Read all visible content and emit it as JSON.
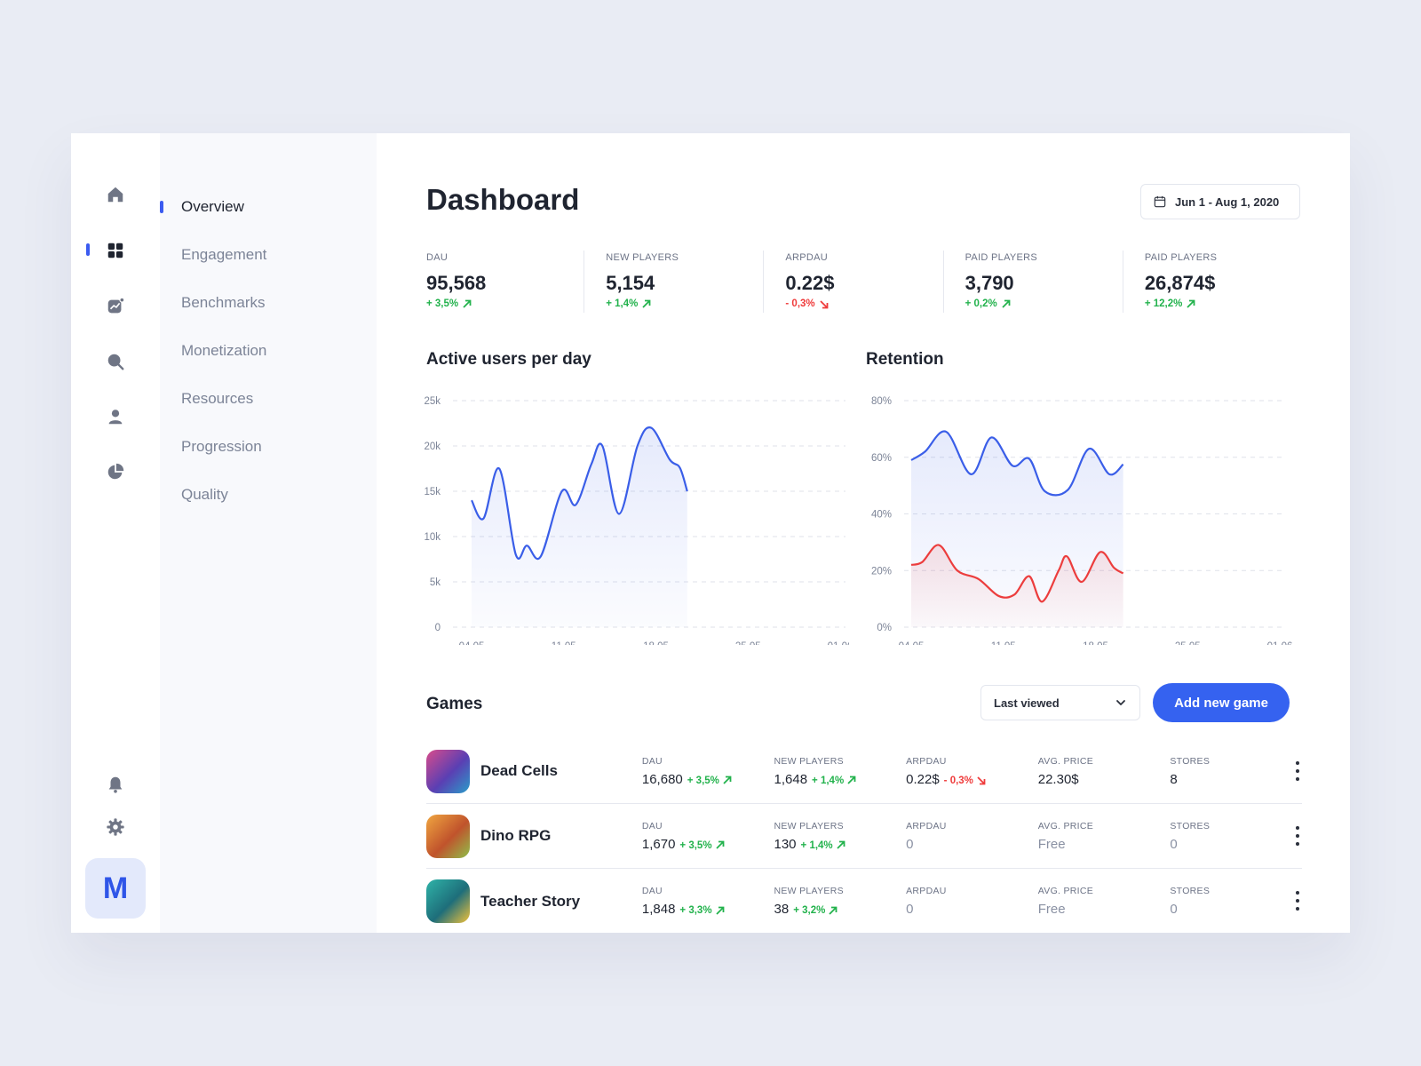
{
  "rail": {
    "icons": [
      "home-icon",
      "grid-icon",
      "analytics-icon",
      "search-icon",
      "user-icon",
      "pie-chart-icon",
      "bell-icon",
      "gear-icon"
    ],
    "avatar_letter": "M"
  },
  "subnav": {
    "items": [
      {
        "label": "Overview",
        "active": true
      },
      {
        "label": "Engagement"
      },
      {
        "label": "Benchmarks"
      },
      {
        "label": "Monetization"
      },
      {
        "label": "Resources"
      },
      {
        "label": "Progression"
      },
      {
        "label": "Quality"
      }
    ]
  },
  "header": {
    "title": "Dashboard",
    "date_range": "Jun 1 - Aug 1, 2020"
  },
  "kpis": [
    {
      "label": "DAU",
      "value": "95,568",
      "change": "+ 3,5%",
      "direction": "up"
    },
    {
      "label": "NEW PLAYERS",
      "value": "5,154",
      "change": "+ 1,4%",
      "direction": "up"
    },
    {
      "label": "ARPDAU",
      "value": "0.22$",
      "change": "- 0,3%",
      "direction": "down"
    },
    {
      "label": "PAID PLAYERS",
      "value": "3,790",
      "change": "+ 0,2%",
      "direction": "up"
    },
    {
      "label": "PAID PLAYERS",
      "value": "26,874$",
      "change": "+ 12,2%",
      "direction": "up"
    }
  ],
  "colors": {
    "accent": "#3b5bf0",
    "up": "#22b24c",
    "down": "#ef3b3b",
    "series_blue": "#3a5ee8",
    "series_red": "#ec3d3d"
  },
  "chart_data": [
    {
      "type": "area",
      "title": "Active users per day",
      "x": [
        "04.05",
        "11.05",
        "18.05",
        "25.05",
        "01.06"
      ],
      "yticks": [
        "0",
        "5k",
        "10k",
        "15k",
        "20k",
        "25k"
      ],
      "ylim": [
        0,
        25000
      ],
      "grid": true,
      "series": [
        {
          "values": [
            [
              0,
              14000
            ],
            [
              0.13,
              12000
            ],
            [
              0.3,
              17500
            ],
            [
              0.48,
              8000
            ],
            [
              0.6,
              9000
            ],
            [
              0.75,
              7800
            ],
            [
              0.98,
              15000
            ],
            [
              1.13,
              13500
            ],
            [
              1.3,
              18000
            ],
            [
              1.42,
              20000
            ],
            [
              1.6,
              12500
            ],
            [
              1.8,
              20000
            ],
            [
              1.95,
              22000
            ],
            [
              2.15,
              18500
            ],
            [
              2.26,
              17600
            ],
            [
              2.34,
              15000
            ]
          ]
        }
      ]
    },
    {
      "type": "area",
      "title": "Retention",
      "x": [
        "04.05",
        "11.05",
        "18.05",
        "25.05",
        "01.06"
      ],
      "yticks": [
        "0%",
        "20%",
        "40%",
        "60%",
        "80%"
      ],
      "ylim": [
        0,
        80
      ],
      "grid": true,
      "series": [
        {
          "values": [
            [
              0,
              59
            ],
            [
              0.15,
              62
            ],
            [
              0.38,
              69
            ],
            [
              0.65,
              54
            ],
            [
              0.87,
              67
            ],
            [
              1.1,
              57
            ],
            [
              1.28,
              59.5
            ],
            [
              1.45,
              48
            ],
            [
              1.7,
              48.5
            ],
            [
              1.93,
              63
            ],
            [
              2.15,
              54
            ],
            [
              2.3,
              57.5
            ]
          ]
        },
        {
          "values": [
            [
              0,
              22
            ],
            [
              0.12,
              23
            ],
            [
              0.3,
              29
            ],
            [
              0.5,
              20
            ],
            [
              0.73,
              17
            ],
            [
              0.95,
              11
            ],
            [
              1.12,
              11.5
            ],
            [
              1.28,
              18
            ],
            [
              1.42,
              9
            ],
            [
              1.6,
              20
            ],
            [
              1.69,
              25
            ],
            [
              1.85,
              16
            ],
            [
              2.05,
              26.5
            ],
            [
              2.2,
              21
            ],
            [
              2.3,
              19
            ]
          ]
        }
      ]
    }
  ],
  "games": {
    "title": "Games",
    "sort_label": "Last viewed",
    "add_label": "Add new game",
    "rows": [
      {
        "name": "Dead Cells",
        "thumb_colors": [
          "#d94c8b",
          "#5a3fb3",
          "#2a9dc9"
        ],
        "dau": "16,680",
        "dau_change": "+ 3,5%",
        "dau_dir": "up",
        "new_players": "1,648",
        "new_change": "+ 1,4%",
        "new_dir": "up",
        "arpdau": "0.22$",
        "arpdau_change": "- 0,3%",
        "arpdau_dir": "down",
        "avg_price": "22.30$",
        "stores": "8",
        "muted": false
      },
      {
        "name": "Dino RPG",
        "thumb_colors": [
          "#f0a640",
          "#c0532c",
          "#8fbf4a"
        ],
        "dau": "1,670",
        "dau_change": "+ 3,5%",
        "dau_dir": "up",
        "new_players": "130",
        "new_change": "+ 1,4%",
        "new_dir": "up",
        "arpdau": "0",
        "arpdau_change": "",
        "arpdau_dir": "",
        "avg_price": "Free",
        "stores": "0",
        "muted": true
      },
      {
        "name": "Teacher Story",
        "thumb_colors": [
          "#2fb3a8",
          "#1e6e7a",
          "#f2c23a"
        ],
        "dau": "1,848",
        "dau_change": "+ 3,3%",
        "dau_dir": "up",
        "new_players": "38",
        "new_change": "+ 3,2%",
        "new_dir": "up",
        "arpdau": "0",
        "arpdau_change": "",
        "arpdau_dir": "",
        "avg_price": "Free",
        "stores": "0",
        "muted": true
      }
    ],
    "column_labels": {
      "dau": "DAU",
      "new_players": "NEW PLAYERS",
      "arpdau": "ARPDAU",
      "avg_price": "AVG. PRICE",
      "stores": "STORES"
    }
  }
}
